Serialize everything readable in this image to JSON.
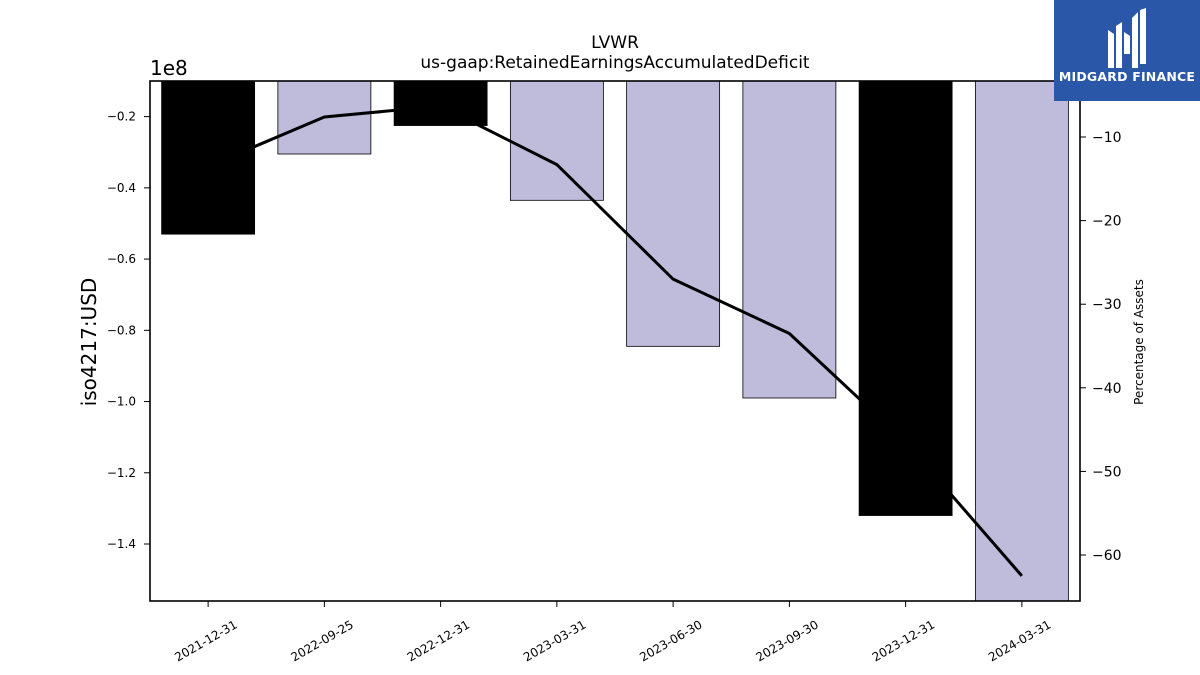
{
  "chart_data": {
    "type": "bar",
    "title": "LVWR",
    "subtitle": "us-gaap:RetainedEarningsAccumulatedDeficit",
    "ylabel": "iso4217:USD",
    "y2label": "Percentage of Assets",
    "offset_label": "1e8",
    "categories": [
      "2021-12-31",
      "2022-09-25",
      "2022-12-31",
      "2023-03-31",
      "2023-06-30",
      "2023-09-30",
      "2023-12-31",
      "2024-03-31"
    ],
    "bar_values": [
      -0.53,
      -0.305,
      -0.225,
      -0.435,
      -0.845,
      -0.99,
      -1.32,
      -1.56
    ],
    "bar_colors": [
      "#000000",
      "#bebbdb",
      "#000000",
      "#bebbdb",
      "#bebbdb",
      "#bebbdb",
      "#000000",
      "#bebbdb"
    ],
    "line_values_pct": [
      -13.5,
      -7.6,
      -6.3,
      -13.3,
      -27.0,
      -33.5,
      -46.5,
      -62.5
    ],
    "ylim": [
      -1.56,
      -0.1
    ],
    "yticks": [
      -0.2,
      -0.4,
      -0.6,
      -0.8,
      -1.0,
      -1.2,
      -1.4
    ],
    "ytick_labels": [
      "−0.2",
      "−0.4",
      "−0.6",
      "−0.8",
      "−1.0",
      "−1.2",
      "−1.4"
    ],
    "y2lim": [
      -65.5,
      -3.3
    ],
    "y2ticks": [
      -10,
      -20,
      -30,
      -40,
      -50,
      -60
    ],
    "y2tick_labels": [
      "−10",
      "−20",
      "−30",
      "−40",
      "−50",
      "−60"
    ],
    "grid": false
  },
  "logo": {
    "text": "MIDGARD FINANCE"
  }
}
